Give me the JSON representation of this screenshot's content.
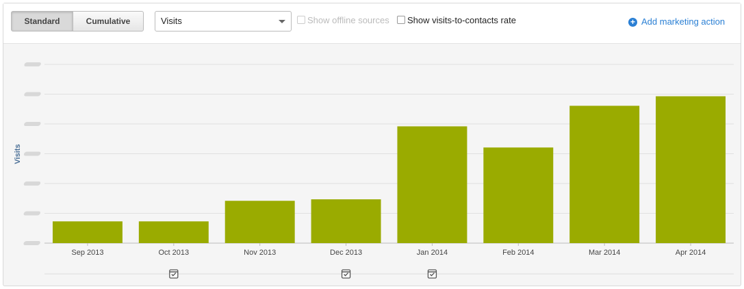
{
  "toolbar": {
    "buttons": [
      "Standard",
      "Cumulative"
    ],
    "select": "Visits",
    "checkboxes": [
      "Show offline sources",
      "Show visits-to-contacts rate"
    ],
    "action": "Add marketing action"
  },
  "chart_data": {
    "type": "bar",
    "y_label": "Visits",
    "categories": [
      "Sep 2013",
      "Oct 2013",
      "Nov 2013",
      "Dec 2013",
      "Jan 2014",
      "Feb 2014",
      "Mar 2014",
      "Apr 2014"
    ],
    "values": [
      0.73,
      0.73,
      1.42,
      1.47,
      3.92,
      3.21,
      4.61,
      4.93
    ],
    "color": "#9aab00",
    "ylim": [
      0,
      6
    ],
    "yticks": [
      0,
      1,
      2,
      3,
      4,
      5,
      6
    ],
    "grid": true
  }
}
